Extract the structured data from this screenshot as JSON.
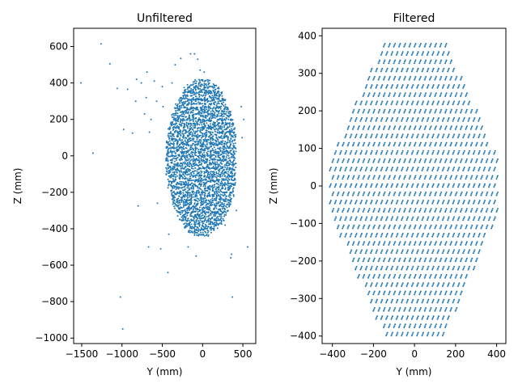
{
  "figure": {
    "background": "#ffffff"
  },
  "chart_data": [
    {
      "type": "scatter",
      "title": "Unfiltered",
      "xlabel": "Y (mm)",
      "ylabel": "Z (mm)",
      "xlim": [
        -1600,
        660
      ],
      "ylim": [
        -1030,
        700
      ],
      "xticks": [
        -1500,
        -1000,
        -500,
        0,
        500
      ],
      "yticks": [
        -1000,
        -800,
        -600,
        -400,
        -200,
        0,
        200,
        400,
        600
      ],
      "xtick_labels": [
        "−1500",
        "−1000",
        "−500",
        "0",
        "500"
      ],
      "ytick_labels": [
        "−1000",
        "−800",
        "−600",
        "−400",
        "−200",
        "0",
        "200",
        "400",
        "600"
      ],
      "grid": false,
      "color": "#1f77b4",
      "series": [
        {
          "description": "dense cloud of beam hits",
          "cloud": {
            "y_range": [
              -440,
              420
            ],
            "z_range": [
              -430,
              410
            ],
            "shape": "ellipse",
            "center": [
              -10,
              -10
            ]
          },
          "outliers": [
            [
              -1510,
              400
            ],
            [
              -1360,
              15
            ],
            [
              -1260,
              615
            ],
            [
              -1150,
              505
            ],
            [
              -1060,
              370
            ],
            [
              -1020,
              -775
            ],
            [
              -990,
              -950
            ],
            [
              -980,
              145
            ],
            [
              -930,
              365
            ],
            [
              -870,
              125
            ],
            [
              -830,
              300
            ],
            [
              -800,
              -275
            ],
            [
              -820,
              420
            ],
            [
              -760,
              400
            ],
            [
              -720,
              230
            ],
            [
              -700,
              320
            ],
            [
              -690,
              460
            ],
            [
              -670,
              -500
            ],
            [
              -660,
              130
            ],
            [
              -640,
              200
            ],
            [
              -600,
              410
            ],
            [
              -570,
              300
            ],
            [
              -560,
              -260
            ],
            [
              -520,
              -510
            ],
            [
              -500,
              380
            ],
            [
              -490,
              270
            ],
            [
              -430,
              -640
            ],
            [
              -420,
              -430
            ],
            [
              -380,
              400
            ],
            [
              -340,
              500
            ],
            [
              -270,
              535
            ],
            [
              -180,
              -500
            ],
            [
              -150,
              560
            ],
            [
              -100,
              560
            ],
            [
              -80,
              -550
            ],
            [
              -60,
              530
            ],
            [
              -30,
              470
            ],
            [
              20,
              460
            ],
            [
              280,
              -380
            ],
            [
              360,
              -540
            ],
            [
              350,
              -560
            ],
            [
              370,
              -775
            ],
            [
              420,
              -300
            ],
            [
              560,
              -500
            ],
            [
              480,
              270
            ],
            [
              510,
              200
            ],
            [
              490,
              100
            ]
          ]
        }
      ]
    },
    {
      "type": "scatter",
      "title": "Filtered",
      "xlabel": "Y (mm)",
      "ylabel": "Z (mm)",
      "xlim": [
        -450,
        445
      ],
      "ylim": [
        -420,
        420
      ],
      "xticks": [
        -400,
        -200,
        0,
        200,
        400
      ],
      "yticks": [
        -400,
        -300,
        -200,
        -100,
        0,
        100,
        200,
        300,
        400
      ],
      "xtick_labels": [
        "−400",
        "−200",
        "0",
        "200",
        "400"
      ],
      "ytick_labels": [
        "−400",
        "−300",
        "−200",
        "−100",
        "0",
        "100",
        "200",
        "300",
        "400"
      ],
      "grid": false,
      "color": "#1f77b4",
      "series": [
        {
          "description": "regular grid of beam hits inside hexagonal aperture",
          "grid_spacing_y": 25,
          "grid_spacing_z": 22,
          "aperture_vertices": [
            [
              -150,
              385
            ],
            [
              150,
              385
            ],
            [
              410,
              70
            ],
            [
              410,
              -70
            ],
            [
              150,
              -395
            ],
            [
              -150,
              -395
            ],
            [
              -410,
              -70
            ],
            [
              -410,
              70
            ]
          ]
        }
      ]
    }
  ]
}
